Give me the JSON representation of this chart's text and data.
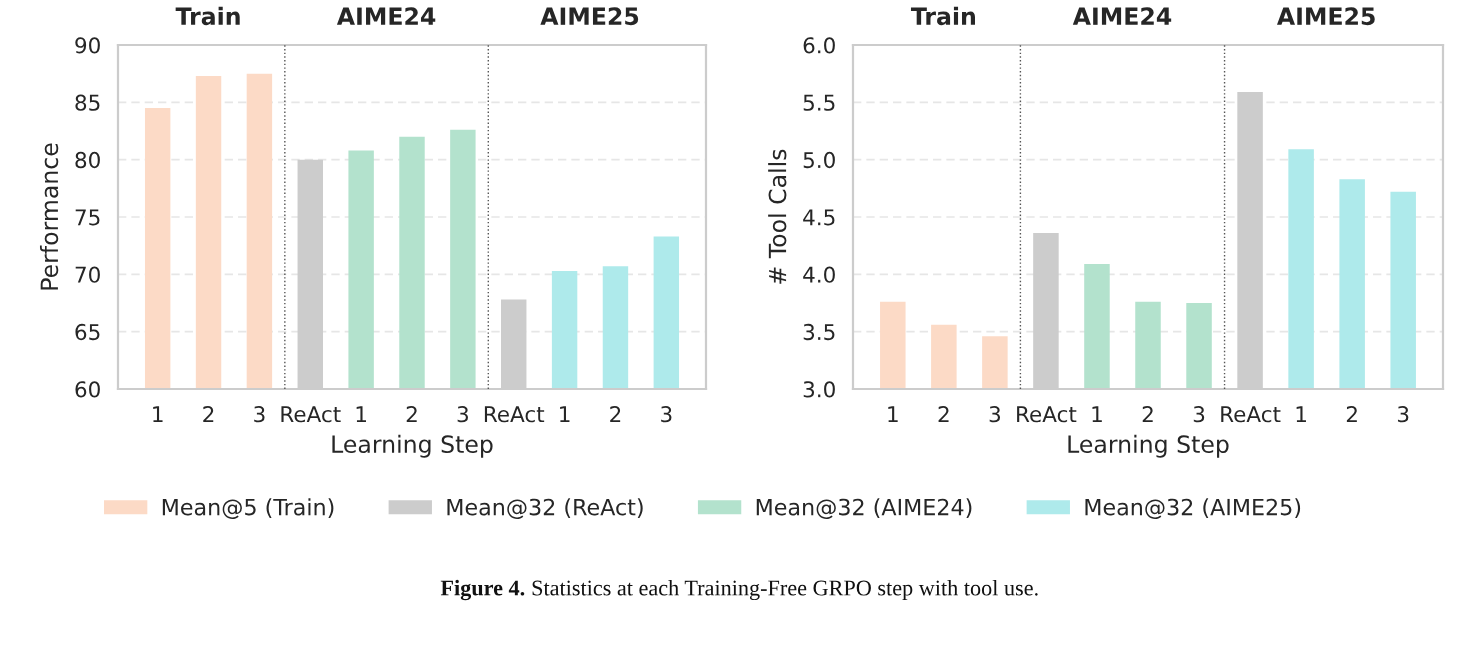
{
  "chart_data": [
    {
      "type": "bar",
      "xlabel": "Learning Step",
      "ylabel": "Performance",
      "categories": [
        "1",
        "2",
        "3",
        "ReAct",
        "1",
        "2",
        "3",
        "ReAct",
        "1",
        "2",
        "3"
      ],
      "series": [
        {
          "name": "Mean@5 (Train)",
          "color": "#fcdac6",
          "values": [
            84.5,
            87.3,
            87.5,
            null,
            null,
            null,
            null,
            null,
            null,
            null,
            null
          ]
        },
        {
          "name": "Mean@32 (ReAct)",
          "color": "#cccccc",
          "values": [
            null,
            null,
            null,
            80.0,
            null,
            null,
            null,
            67.8,
            null,
            null,
            null
          ]
        },
        {
          "name": "Mean@32 (AIME24)",
          "color": "#b3e2cd",
          "values": [
            null,
            null,
            null,
            null,
            80.8,
            82.0,
            82.6,
            null,
            null,
            null,
            null
          ]
        },
        {
          "name": "Mean@32 (AIME25)",
          "color": "#aeeaeb",
          "values": [
            null,
            null,
            null,
            null,
            null,
            null,
            null,
            null,
            70.3,
            70.7,
            73.3
          ]
        }
      ],
      "ylim": [
        60,
        90
      ],
      "yticks": [
        60,
        65,
        70,
        75,
        80,
        85,
        90
      ],
      "grid": "y",
      "legend": "bottom",
      "annotations": [
        "Train",
        "AIME24",
        "AIME25",
        "Figure 4. Statistics at each Training-Free GRPO step with tool use."
      ]
    },
    {
      "type": "bar",
      "xlabel": "Learning Step",
      "ylabel": "# Tool Calls",
      "categories": [
        "1",
        "2",
        "3",
        "ReAct",
        "1",
        "2",
        "3",
        "ReAct",
        "1",
        "2",
        "3"
      ],
      "series": [
        {
          "name": "Mean@5 (Train)",
          "color": "#fcdac6",
          "values": [
            3.76,
            3.56,
            3.46,
            null,
            null,
            null,
            null,
            null,
            null,
            null,
            null
          ]
        },
        {
          "name": "Mean@32 (ReAct)",
          "color": "#cccccc",
          "values": [
            null,
            null,
            null,
            4.36,
            null,
            null,
            null,
            5.59,
            null,
            null,
            null
          ]
        },
        {
          "name": "Mean@32 (AIME24)",
          "color": "#b3e2cd",
          "values": [
            null,
            null,
            null,
            null,
            4.09,
            3.76,
            3.75,
            null,
            null,
            null,
            null
          ]
        },
        {
          "name": "Mean@32 (AIME25)",
          "color": "#aeeaeb",
          "values": [
            null,
            null,
            null,
            null,
            null,
            null,
            null,
            null,
            5.09,
            4.83,
            4.72
          ]
        }
      ],
      "ylim": [
        3.0,
        6.0
      ],
      "yticks": [
        {
          "value": 3.0,
          "label": "3.0"
        },
        3.5,
        {
          "value": 4.0,
          "label": "4.0"
        },
        4.5,
        {
          "value": 5.0,
          "label": "5.0"
        },
        5.5,
        {
          "value": 6.0,
          "label": "6.0"
        }
      ],
      "grid": "y",
      "legend": "bottom",
      "annotations": [
        "Train",
        "AIME24",
        "AIME25"
      ]
    }
  ]
}
